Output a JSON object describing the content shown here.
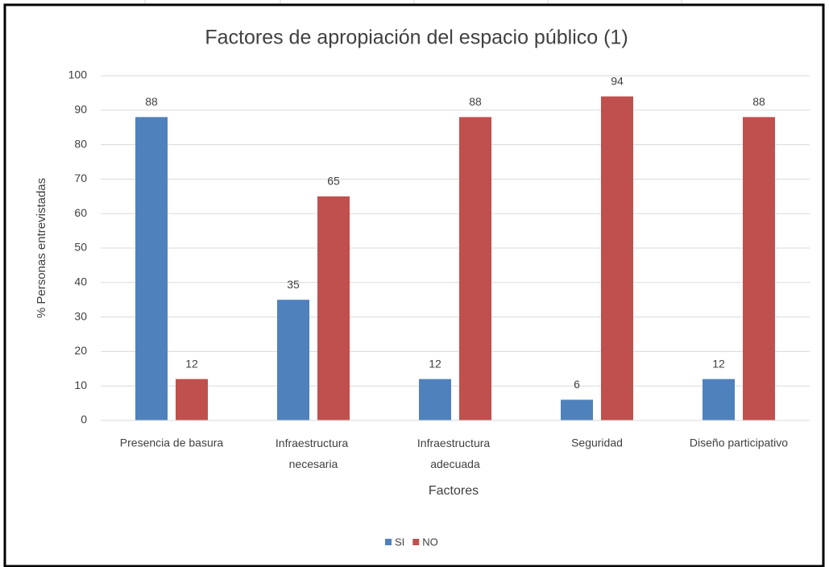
{
  "chart_data": {
    "type": "bar",
    "title": "Factores de apropiación del espacio público (1)",
    "x_label": "Factores",
    "y_label": "% Personas entrevistadas",
    "categories": [
      "Presencia de basura",
      "Infraestructura necesaria",
      "Infraestructura adecuada",
      "Seguridad",
      "Diseño participativo"
    ],
    "series": [
      {
        "name": "SI",
        "color": "#4f81bd",
        "values": [
          88,
          35,
          12,
          6,
          12
        ]
      },
      {
        "name": "NO",
        "color": "#c0504d",
        "values": [
          12,
          65,
          88,
          94,
          88
        ]
      }
    ],
    "ylim": [
      0,
      100
    ],
    "yticks": [
      0,
      10,
      20,
      30,
      40,
      50,
      60,
      70,
      80,
      90,
      100
    ],
    "grid": true,
    "legend": "bottom"
  }
}
